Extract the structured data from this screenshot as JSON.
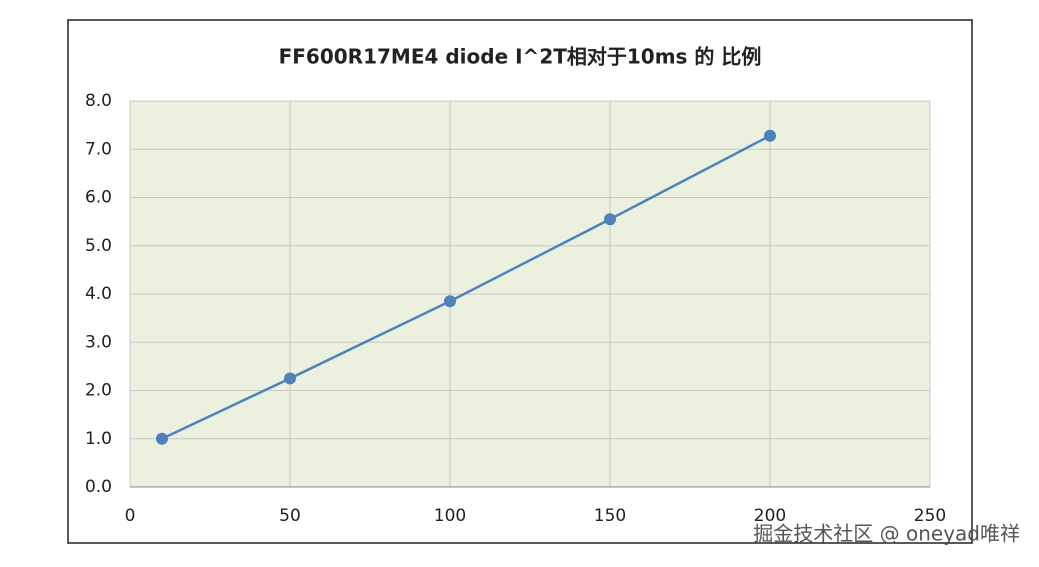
{
  "chart_data": {
    "type": "line",
    "title": "FF600R17ME4 diode I^2T相对于10ms 的 比例",
    "x": [
      10,
      50,
      100,
      150,
      200
    ],
    "values": [
      1.0,
      2.25,
      3.85,
      5.55,
      7.28
    ],
    "color": "#4f81bd",
    "xlim": [
      0,
      250
    ],
    "xticks": [
      0,
      50,
      100,
      150,
      200,
      250
    ],
    "ylim": [
      0,
      8
    ],
    "yticks": [
      {
        "value": 0,
        "label": "0.0"
      },
      {
        "value": 1,
        "label": "1.0"
      },
      {
        "value": 2,
        "label": "2.0"
      },
      {
        "value": 3,
        "label": "3.0"
      },
      {
        "value": 4,
        "label": "4.0"
      },
      {
        "value": 5,
        "label": "5.0"
      },
      {
        "value": 6,
        "label": "6.0"
      },
      {
        "value": 7,
        "label": "7.0"
      },
      {
        "value": 8,
        "label": "8.0"
      }
    ],
    "grid": true,
    "plot_background": "#ebf1de",
    "watermark": "掘金技术社区 @ oneyad唯祥"
  }
}
